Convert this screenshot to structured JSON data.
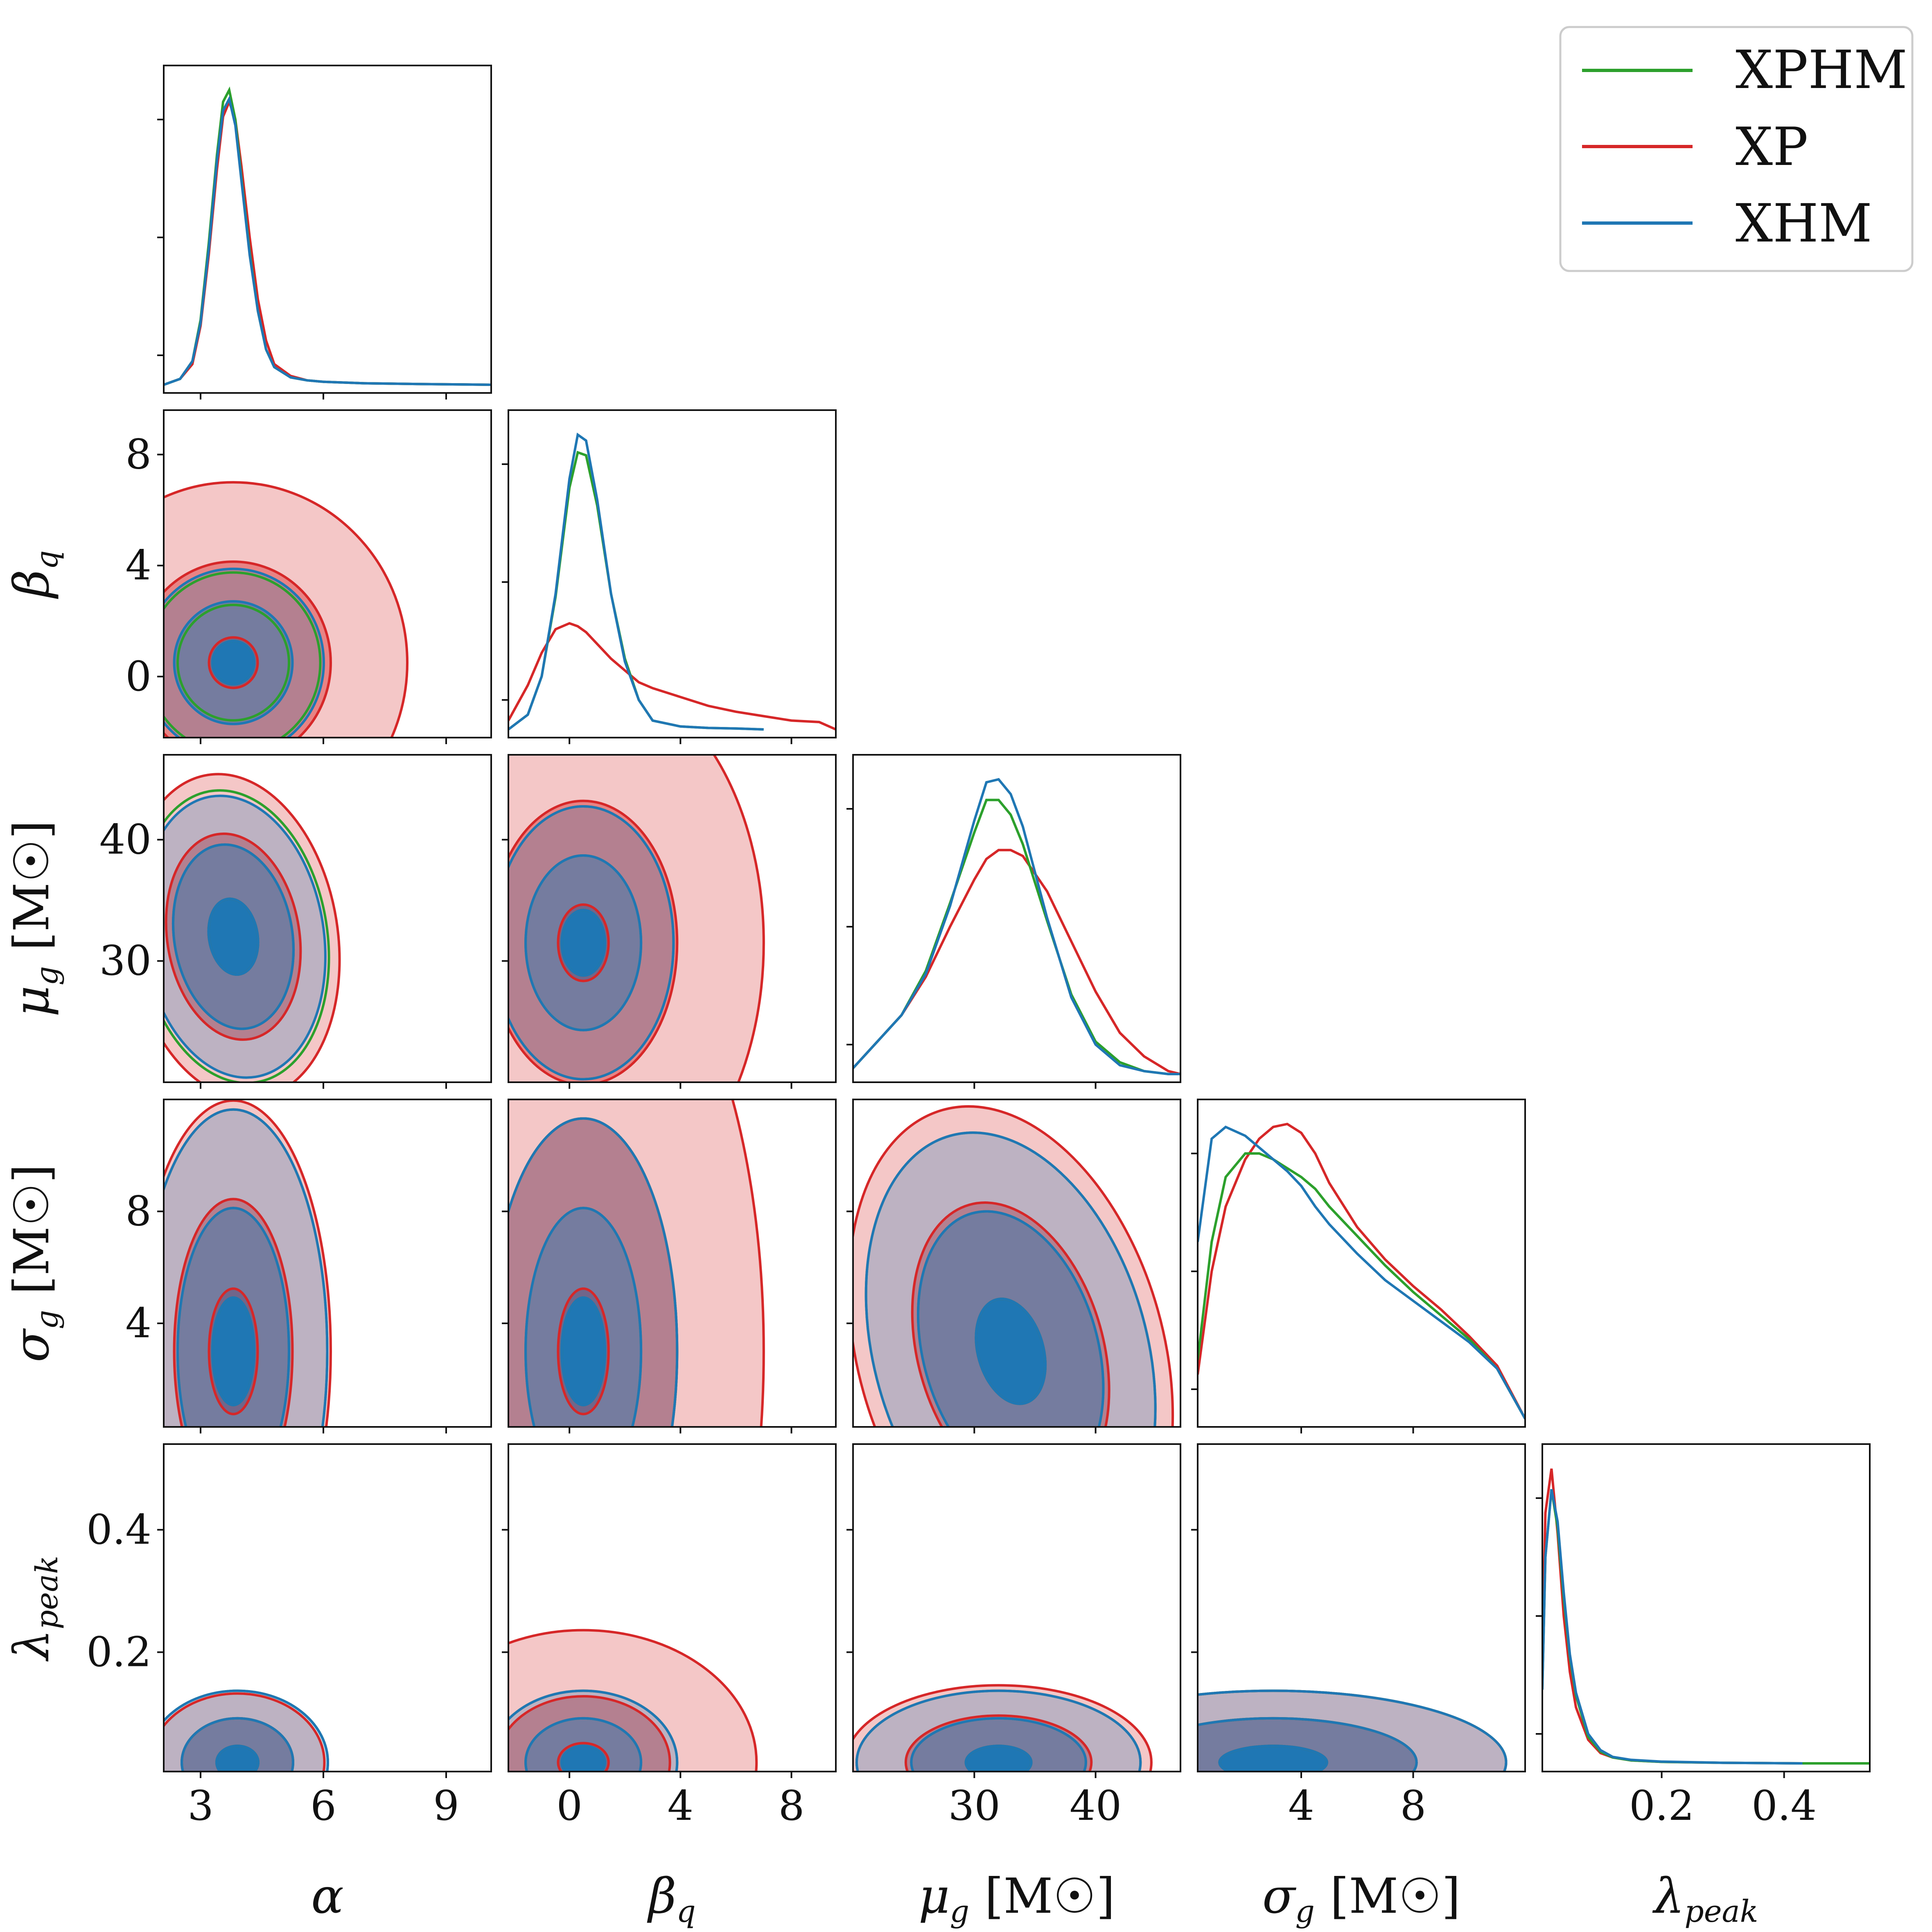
{
  "chart_data": {
    "type": "corner",
    "parameters": [
      {
        "key": "alpha",
        "symbol": "α",
        "sub": "",
        "unit": "",
        "range": [
          2.1,
          10.1
        ],
        "ticks": [
          3,
          6,
          9
        ]
      },
      {
        "key": "beta_q",
        "symbol": "β",
        "sub": "q",
        "unit": "",
        "range": [
          -2.2,
          9.6
        ],
        "ticks": [
          0,
          4,
          8
        ]
      },
      {
        "key": "mu_g",
        "symbol": "μ",
        "sub": "g",
        "unit": "[M☉]",
        "range": [
          20,
          47
        ],
        "ticks": [
          30,
          40
        ]
      },
      {
        "key": "sigma_g",
        "symbol": "σ",
        "sub": "g",
        "unit": "[M☉]",
        "range": [
          0.3,
          12.0
        ],
        "ticks": [
          4,
          8
        ]
      },
      {
        "key": "lambda_peak",
        "symbol": "λ",
        "sub": "peak",
        "unit": "",
        "range": [
          0.005,
          0.54
        ],
        "ticks": [
          0.2,
          0.4
        ]
      }
    ],
    "series": [
      {
        "name": "XPHM",
        "color": "#2ca02c",
        "filled": false
      },
      {
        "name": "XP",
        "color": "#d62728",
        "filled": true
      },
      {
        "name": "XHM",
        "color": "#1f77b4",
        "filled": true
      }
    ],
    "legend": {
      "position": "top-right",
      "entries": [
        "XPHM",
        "XP",
        "XHM"
      ]
    },
    "marginals": {
      "alpha": {
        "x": [
          2.1,
          2.5,
          2.8,
          3.0,
          3.2,
          3.4,
          3.55,
          3.7,
          3.85,
          4.0,
          4.2,
          4.4,
          4.6,
          4.8,
          5.2,
          5.6,
          6.0,
          7.0,
          8.0,
          10.1
        ],
        "XPHM": [
          0.0,
          0.02,
          0.08,
          0.22,
          0.48,
          0.78,
          0.96,
          1.0,
          0.9,
          0.7,
          0.45,
          0.25,
          0.12,
          0.06,
          0.025,
          0.015,
          0.01,
          0.005,
          0.003,
          0.0
        ],
        "XP": [
          0.0,
          0.02,
          0.07,
          0.2,
          0.44,
          0.73,
          0.91,
          0.96,
          0.9,
          0.74,
          0.5,
          0.29,
          0.15,
          0.07,
          0.03,
          0.015,
          0.01,
          0.005,
          0.003,
          0.0
        ],
        "XHM": [
          0.0,
          0.02,
          0.08,
          0.21,
          0.46,
          0.76,
          0.93,
          0.97,
          0.88,
          0.69,
          0.44,
          0.25,
          0.12,
          0.06,
          0.025,
          0.015,
          0.01,
          0.005,
          0.003,
          0.0
        ]
      },
      "beta_q": {
        "x": [
          -2.2,
          -1.5,
          -1.0,
          -0.5,
          0.0,
          0.3,
          0.6,
          1.0,
          1.5,
          2.0,
          2.5,
          3.0,
          4.0,
          5.0,
          6.0,
          7.0,
          8.0,
          9.0,
          9.6
        ],
        "XPHM": [
          0.0,
          0.05,
          0.18,
          0.45,
          0.82,
          0.94,
          0.93,
          0.76,
          0.46,
          0.24,
          0.1,
          0.03,
          0.01,
          0.005,
          0.003,
          0.0,
          null,
          null,
          null
        ],
        "XP": [
          0.03,
          0.15,
          0.26,
          0.34,
          0.36,
          0.35,
          0.33,
          0.29,
          0.24,
          0.2,
          0.16,
          0.14,
          0.11,
          0.08,
          0.06,
          0.045,
          0.03,
          0.025,
          0.0
        ],
        "XHM": [
          0.0,
          0.05,
          0.18,
          0.46,
          0.85,
          1.0,
          0.98,
          0.78,
          0.46,
          0.23,
          0.1,
          0.03,
          0.01,
          0.005,
          0.003,
          0.0,
          null,
          null,
          null
        ]
      },
      "mu_g": {
        "x": [
          20,
          22,
          24,
          26,
          28,
          30,
          31,
          32,
          33,
          34,
          36,
          38,
          40,
          42,
          44,
          46,
          47
        ],
        "XPHM": [
          0.02,
          0.11,
          0.2,
          0.35,
          0.58,
          0.82,
          0.93,
          0.93,
          0.88,
          0.78,
          0.52,
          0.27,
          0.11,
          0.04,
          0.01,
          0.0,
          0.0
        ],
        "XP": [
          0.02,
          0.11,
          0.2,
          0.33,
          0.5,
          0.66,
          0.73,
          0.76,
          0.76,
          0.74,
          0.62,
          0.45,
          0.28,
          0.14,
          0.06,
          0.01,
          0.0
        ],
        "XHM": [
          0.02,
          0.11,
          0.2,
          0.34,
          0.57,
          0.86,
          0.99,
          1.0,
          0.95,
          0.84,
          0.53,
          0.26,
          0.1,
          0.03,
          0.01,
          0.0,
          0.0
        ]
      },
      "sigma_g": {
        "x": [
          0.3,
          0.8,
          1.3,
          2.0,
          2.5,
          3.0,
          3.5,
          4.0,
          4.5,
          5.0,
          6.0,
          7.0,
          8.0,
          9.0,
          10.0,
          11.0,
          12.0
        ],
        "XPHM": [
          0.2,
          0.6,
          0.82,
          0.9,
          0.9,
          0.88,
          0.85,
          0.82,
          0.78,
          0.72,
          0.62,
          0.52,
          0.43,
          0.35,
          0.27,
          0.17,
          0.0
        ],
        "XP": [
          0.15,
          0.5,
          0.72,
          0.88,
          0.95,
          0.99,
          1.0,
          0.97,
          0.9,
          0.8,
          0.65,
          0.54,
          0.45,
          0.37,
          0.28,
          0.18,
          0.0
        ],
        "XHM": [
          0.6,
          0.95,
          0.99,
          0.96,
          0.92,
          0.88,
          0.84,
          0.79,
          0.72,
          0.66,
          0.56,
          0.47,
          0.4,
          0.33,
          0.26,
          0.17,
          0.0
        ]
      },
      "lambda_peak": {
        "x": [
          0.005,
          0.01,
          0.02,
          0.03,
          0.04,
          0.05,
          0.06,
          0.08,
          0.1,
          0.12,
          0.15,
          0.2,
          0.3,
          0.43,
          0.54
        ],
        "XPHM": [
          0.25,
          0.7,
          0.93,
          0.8,
          0.56,
          0.36,
          0.23,
          0.09,
          0.04,
          0.02,
          0.01,
          0.005,
          0.002,
          0.0,
          0.0
        ],
        "XP": [
          0.35,
          0.85,
          1.0,
          0.78,
          0.5,
          0.31,
          0.19,
          0.08,
          0.035,
          0.02,
          0.01,
          0.005,
          0.002,
          0.0,
          0.0
        ],
        "XHM": [
          0.25,
          0.7,
          0.93,
          0.82,
          0.58,
          0.37,
          0.24,
          0.1,
          0.045,
          0.022,
          0.012,
          0.006,
          0.002,
          0.0,
          null
        ]
      }
    },
    "contours": [
      {
        "x": "alpha",
        "y": "beta_q",
        "center": [
          3.8,
          0.5
        ],
        "XPHM": [
          0.6,
          1.6,
          2.5
        ],
        "XP": [
          0.7,
          2.8,
          5.0
        ],
        "XHM": [
          0.6,
          1.7,
          2.6
        ],
        "rho": 0.0
      },
      {
        "x": "alpha",
        "y": "mu_g",
        "center": [
          3.8,
          32
        ],
        "XPHM": [
          0.7,
          1.7,
          2.7
        ],
        "XP": [
          0.7,
          1.9,
          3.0
        ],
        "XHM": [
          0.7,
          1.7,
          2.6
        ],
        "rho": -0.2
      },
      {
        "x": "beta_q",
        "y": "mu_g",
        "center": [
          0.5,
          31.5
        ],
        "XPHM": [
          0.6,
          1.6,
          2.5
        ],
        "XP": [
          0.7,
          2.6,
          5.0
        ],
        "XHM": [
          0.6,
          1.6,
          2.5
        ],
        "rho": 0.0
      },
      {
        "x": "alpha",
        "y": "sigma_g",
        "center": [
          3.8,
          3.0
        ],
        "XPHM": [
          0.6,
          1.6,
          2.7
        ],
        "XP": [
          0.7,
          1.7,
          2.8
        ],
        "XHM": [
          0.6,
          1.6,
          2.7
        ],
        "rho": 0.0
      },
      {
        "x": "beta_q",
        "y": "sigma_g",
        "center": [
          0.5,
          3.0
        ],
        "XPHM": [
          0.6,
          1.6,
          2.6
        ],
        "XP": [
          0.7,
          2.6,
          5.0
        ],
        "XHM": [
          0.6,
          1.6,
          2.6
        ],
        "rho": 0.0
      },
      {
        "x": "mu_g",
        "y": "sigma_g",
        "center": [
          33,
          3.0
        ],
        "XPHM": [
          0.6,
          1.6,
          2.5
        ],
        "XP": [
          0.6,
          1.7,
          2.8
        ],
        "XHM": [
          0.6,
          1.6,
          2.5
        ],
        "rho": -0.35
      },
      {
        "x": "alpha",
        "y": "lambda_peak",
        "center": [
          3.9,
          0.02
        ],
        "XPHM": [
          0.6,
          1.6,
          2.6
        ],
        "XP": [
          0.6,
          1.6,
          2.5
        ],
        "XHM": [
          0.6,
          1.6,
          2.6
        ],
        "rho": 0.0
      },
      {
        "x": "beta_q",
        "y": "lambda_peak",
        "center": [
          0.5,
          0.02
        ],
        "XPHM": [
          0.6,
          1.6,
          2.6
        ],
        "XP": [
          0.7,
          2.4,
          4.8
        ],
        "XHM": [
          0.6,
          1.6,
          2.6
        ],
        "rho": 0.0
      },
      {
        "x": "mu_g",
        "y": "lambda_peak",
        "center": [
          32,
          0.02
        ],
        "XPHM": [
          0.6,
          1.6,
          2.6
        ],
        "XP": [
          0.6,
          1.7,
          2.8
        ],
        "XHM": [
          0.6,
          1.6,
          2.6
        ],
        "rho": 0.0
      },
      {
        "x": "sigma_g",
        "y": "lambda_peak",
        "center": [
          3.0,
          0.02
        ],
        "XPHM": [
          0.6,
          1.6,
          2.6
        ],
        "XP": [
          0.6,
          1.6,
          2.6
        ],
        "XHM": [
          0.6,
          1.6,
          2.6
        ],
        "rho": 0.0
      }
    ],
    "widths": {
      "alpha": 0.85,
      "beta_q": 1.3,
      "mu_g": 4.5,
      "sigma_g": 3.2,
      "lambda_peak": 0.045
    }
  }
}
